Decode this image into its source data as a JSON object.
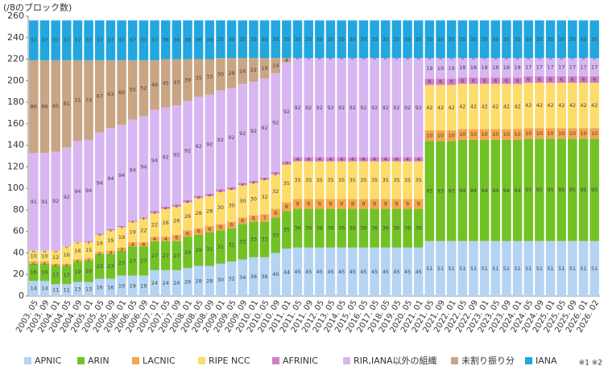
{
  "chart_data": {
    "type": "stacked_bar",
    "y_axis_title": "(/8のブロック数)",
    "note": "※1 ※2",
    "categories": [
      "2003. 05",
      "2003. 09",
      "2004. 01",
      "2004. 05",
      "2004. 09",
      "2005. 01",
      "2005. 05",
      "2005. 09",
      "2006. 01",
      "2006. 05",
      "2006. 09",
      "2007. 01",
      "2007. 05",
      "2007. 09",
      "2008. 01",
      "2008. 05",
      "2008. 09",
      "2009. 01",
      "2009. 05",
      "2009. 09",
      "2010. 01",
      "2010. 05",
      "2010. 09",
      "2011. 01",
      "2011. 05",
      "2011. 09",
      "2012. 05",
      "2013. 05",
      "2014. 05",
      "2015. 05",
      "2016. 05",
      "2017. 05",
      "2018. 05",
      "2019. 05",
      "2020. 05",
      "2021. 01",
      "2021. 05",
      "2021. 09",
      "2022. 01",
      "2022. 05",
      "2022. 09",
      "2023. 01",
      "2023. 05",
      "2023. 09",
      "2024. 01",
      "2024. 05",
      "2024. 09",
      "2025. 01",
      "2025. 05",
      "2025. 09",
      "2026. 01",
      "2026. 02"
    ],
    "ylim": [
      0,
      260
    ],
    "yticks": [
      0,
      20,
      40,
      60,
      80,
      100,
      120,
      140,
      160,
      180,
      200,
      220,
      240,
      260
    ],
    "grid": false,
    "series": [
      {
        "name": "APNIC",
        "color": "#b5d3f3",
        "values": [
          14,
          14,
          11,
          11,
          13,
          13,
          16,
          16,
          19,
          19,
          19,
          24,
          24,
          24,
          26,
          28,
          28,
          30,
          32,
          34,
          36,
          36,
          40,
          44,
          45,
          45,
          45,
          45,
          45,
          45,
          45,
          45,
          45,
          45,
          45,
          45,
          51,
          51,
          51,
          51,
          51,
          51,
          51,
          51,
          51,
          51,
          51,
          51,
          51,
          51,
          51,
          51
        ]
      },
      {
        "name": "ARIN",
        "color": "#72c226",
        "values": [
          16,
          16,
          17,
          17,
          19,
          20,
          23,
          23,
          23,
          27,
          27,
          27,
          27,
          27,
          29,
          29,
          31,
          31,
          31,
          33,
          33,
          33,
          33,
          35,
          36,
          36,
          36,
          36,
          36,
          36,
          36,
          36,
          36,
          36,
          36,
          36,
          93,
          93,
          93,
          94,
          94,
          94,
          94,
          94,
          94,
          95,
          95,
          95,
          95,
          95,
          95,
          95
        ]
      },
      {
        "name": "LACNIC",
        "color": "#f6a54d",
        "values": [
          2,
          2,
          2,
          2,
          2,
          2,
          2,
          3,
          3,
          4,
          4,
          4,
          4,
          6,
          6,
          6,
          6,
          6,
          6,
          6,
          6,
          7,
          8,
          8,
          9,
          9,
          9,
          9,
          9,
          9,
          9,
          9,
          9,
          9,
          9,
          9,
          10,
          10,
          10,
          10,
          10,
          10,
          10,
          10,
          10,
          10,
          10,
          10,
          10,
          10,
          10,
          10
        ]
      },
      {
        "name": "RIPE NCC",
        "color": "#fddc6b",
        "values": [
          10,
          10,
          12,
          16,
          16,
          15,
          16,
          19,
          19,
          19,
          22,
          22,
          26,
          26,
          26,
          28,
          28,
          30,
          30,
          30,
          30,
          32,
          32,
          35,
          35,
          35,
          35,
          35,
          35,
          35,
          35,
          35,
          35,
          35,
          35,
          35,
          42,
          42,
          42,
          42,
          42,
          42,
          42,
          42,
          42,
          42,
          42,
          42,
          42,
          42,
          42,
          42
        ]
      },
      {
        "name": "AFRINIC",
        "color": "#d17fc8",
        "values": [
          0,
          0,
          0,
          0,
          0,
          1,
          1,
          1,
          1,
          1,
          1,
          2,
          2,
          2,
          2,
          2,
          2,
          2,
          2,
          2,
          2,
          2,
          2,
          3,
          4,
          4,
          4,
          4,
          4,
          4,
          4,
          4,
          4,
          4,
          4,
          4,
          6,
          6,
          6,
          6,
          6,
          6,
          6,
          6,
          6,
          6,
          6,
          6,
          6,
          6,
          6,
          6
        ]
      },
      {
        "name": "RIR,IANA以外の組織",
        "color": "#d8b6f2",
        "values": [
          91,
          91,
          92,
          92,
          94,
          94,
          94,
          94,
          94,
          94,
          94,
          94,
          92,
          92,
          92,
          92,
          92,
          92,
          92,
          92,
          92,
          92,
          92,
          92,
          92,
          92,
          92,
          92,
          92,
          92,
          92,
          92,
          92,
          92,
          92,
          92,
          19,
          19,
          19,
          18,
          18,
          18,
          18,
          18,
          18,
          17,
          17,
          17,
          17,
          17,
          17,
          17
        ]
      },
      {
        "name": "未割り振り分",
        "color": "#c9a584",
        "values": [
          86,
          86,
          85,
          81,
          75,
          74,
          67,
          63,
          60,
          55,
          52,
          46,
          45,
          43,
          39,
          35,
          33,
          30,
          28,
          24,
          22,
          19,
          14,
          4,
          0,
          0,
          0,
          0,
          0,
          0,
          0,
          0,
          0,
          0,
          0,
          0,
          0,
          0,
          0,
          0,
          0,
          0,
          0,
          0,
          0,
          0,
          0,
          0,
          0,
          0,
          0,
          0
        ]
      },
      {
        "name": "IANA",
        "color": "#22a7e0",
        "values": [
          37,
          37,
          37,
          37,
          37,
          37,
          37,
          37,
          37,
          37,
          37,
          37,
          36,
          36,
          36,
          36,
          36,
          35,
          35,
          35,
          35,
          35,
          35,
          35,
          35,
          35,
          35,
          35,
          35,
          35,
          35,
          35,
          35,
          35,
          35,
          35,
          35,
          35,
          35,
          35,
          35,
          35,
          35,
          35,
          35,
          35,
          35,
          35,
          35,
          35,
          35,
          35
        ]
      }
    ]
  }
}
